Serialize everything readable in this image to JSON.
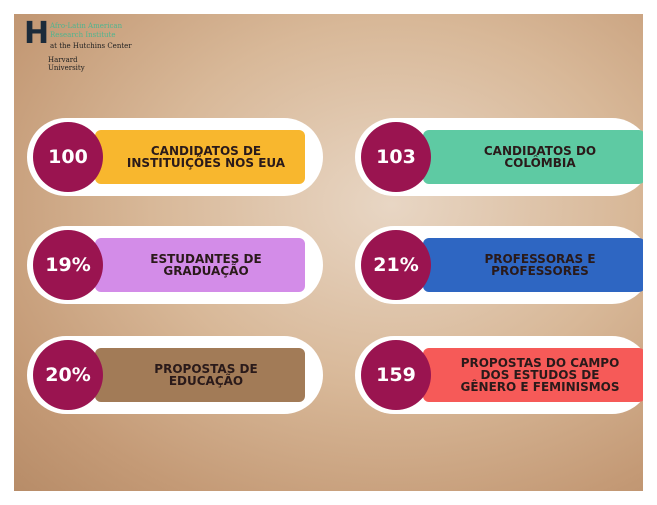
{
  "header": {
    "logo_letter": "H",
    "institute": "Afro-Latin American Research Institute",
    "center": "at the Hutchins Center",
    "university": "Harvard University"
  },
  "cards": [
    {
      "value": "100",
      "label": "CANDIDATOS DE INSTITUIÇÕES NOS EUA",
      "color": "#f8b72e"
    },
    {
      "value": "103",
      "label": "CANDIDATOS DO COLÔMBIA",
      "color": "#5ecaa3"
    },
    {
      "value": "19%",
      "label": "ESTUDANTES DE GRADUAÇÃO",
      "color": "#d38ce8"
    },
    {
      "value": "21%",
      "label": "PROFESSORAS E PROFESSORES",
      "color": "#2e66c2"
    },
    {
      "value": "20%",
      "label": "PROPOSTAS DE EDUCAÇÃO",
      "color": "#a27b57"
    },
    {
      "value": "159",
      "label": "PROPOSTAS DO CAMPO DOS ESTUDOS DE GÊNERO E FEMINISMOS",
      "color": "#f65a58"
    }
  ]
}
